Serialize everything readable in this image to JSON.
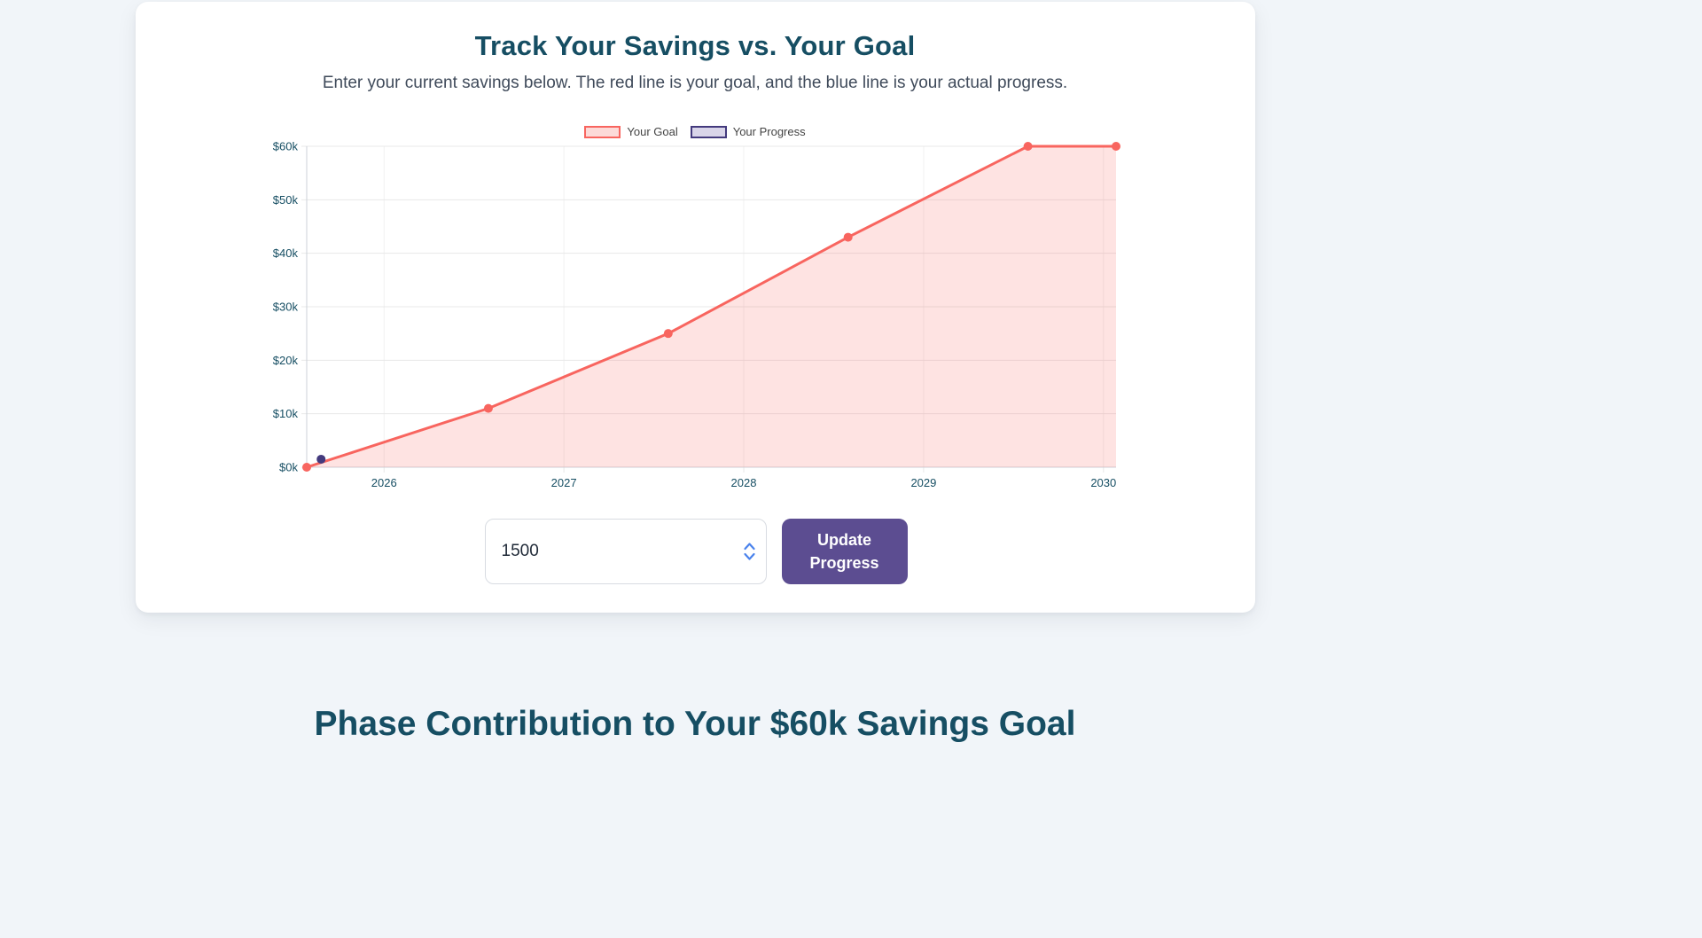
{
  "colors": {
    "page_bg": "#f1f5f9",
    "card_bg": "#ffffff",
    "heading": "#164e63",
    "subtitle": "#3f4a5a",
    "legend_text": "#444444",
    "axis_label": "#164e63",
    "button": "#5c4d91",
    "button_text": "#ffffff",
    "stepper": "#4a82ec",
    "input_border": "#d8dce2",
    "input_text": "#1f2937"
  },
  "card": {
    "title": "Track Your Savings vs. Your Goal",
    "subtitle": "Enter your current savings below. The red line is your goal, and the blue line is your actual progress."
  },
  "controls": {
    "input_value": "1500",
    "button_label": "Update Progress"
  },
  "phase_section": {
    "title": "Phase Contribution to Your $60k Savings Goal"
  },
  "chart_data": {
    "type": "line",
    "title": "",
    "legend_position": "top",
    "grid": true,
    "grid_color": "#e8e8e8",
    "grid_color_v": "#f1f1f1",
    "axis_color": "#cdd2d8",
    "x_axis": {
      "min": 2025.57,
      "max": 2030.07,
      "ticks": [
        "2026",
        "2027",
        "2028",
        "2029",
        "2030"
      ],
      "tick_values": [
        2026,
        2027,
        2028,
        2029,
        2030
      ]
    },
    "y_axis": {
      "min": 0,
      "max": 60000,
      "tick_step": 10000,
      "tick_labels": [
        "$0k",
        "$10k",
        "$20k",
        "$30k",
        "$40k",
        "$50k",
        "$60k"
      ]
    },
    "series": [
      {
        "name": "Your Goal",
        "color": "#f8655f",
        "legend_fill": "#fcdad8",
        "area_fill": "rgba(248,101,95,0.18)",
        "points_x": [
          2025.57,
          2026.58,
          2027.58,
          2028.58,
          2029.58,
          2030.07
        ],
        "points_y": [
          0,
          11000,
          25000,
          43000,
          60000,
          60000
        ]
      },
      {
        "name": "Your Progress",
        "color": "#433a7d",
        "legend_fill": "#d9d5e9",
        "area_fill": null,
        "points_x": [
          2025.65
        ],
        "points_y": [
          1500
        ]
      }
    ]
  }
}
